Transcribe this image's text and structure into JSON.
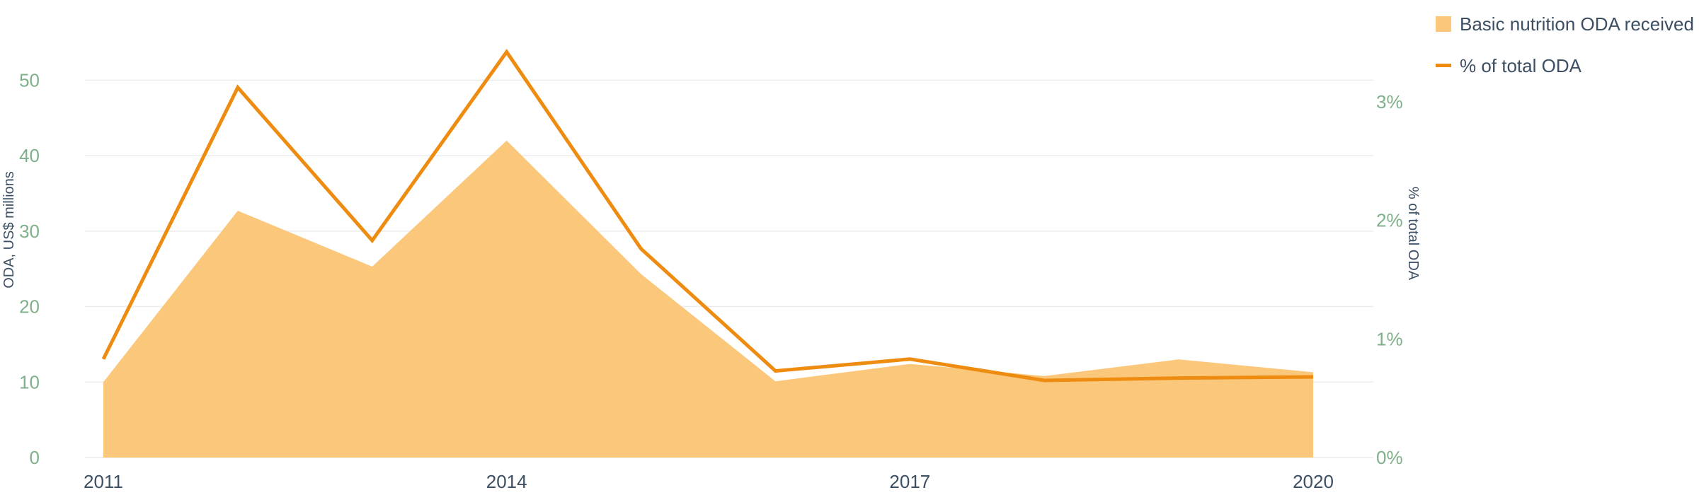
{
  "chart_data": {
    "type": "area",
    "x": [
      2011,
      2012,
      2013,
      2014,
      2015,
      2016,
      2017,
      2018,
      2019,
      2020
    ],
    "x_ticks": [
      "2011",
      "2014",
      "2017",
      "2020"
    ],
    "series": [
      {
        "name": "Basic nutrition ODA received",
        "type": "area",
        "axis": "left",
        "color": "#fbc87b",
        "values": [
          10,
          32.7,
          25.3,
          42,
          24.3,
          10.1,
          12.4,
          10.8,
          13,
          11.3
        ]
      },
      {
        "name": "% of total ODA",
        "type": "line",
        "axis": "right",
        "color": "#ee8c11",
        "values": [
          0.83,
          3.12,
          1.83,
          3.42,
          1.76,
          0.73,
          0.83,
          0.65,
          0.67,
          0.68
        ]
      }
    ],
    "y_left": {
      "label": "ODA, US$ millions",
      "range": [
        0,
        55
      ],
      "ticks": [
        0,
        10,
        20,
        30,
        40,
        50
      ],
      "tick_labels": [
        "0",
        "10",
        "20",
        "30",
        "40",
        "50"
      ]
    },
    "y_right": {
      "label": "% of total ODA",
      "range": [
        0,
        3.5
      ],
      "ticks": [
        0,
        1,
        2,
        3
      ],
      "tick_labels": [
        "0%",
        "1%",
        "2%",
        "3%"
      ]
    },
    "grid": true,
    "legend_position": "top-right"
  }
}
